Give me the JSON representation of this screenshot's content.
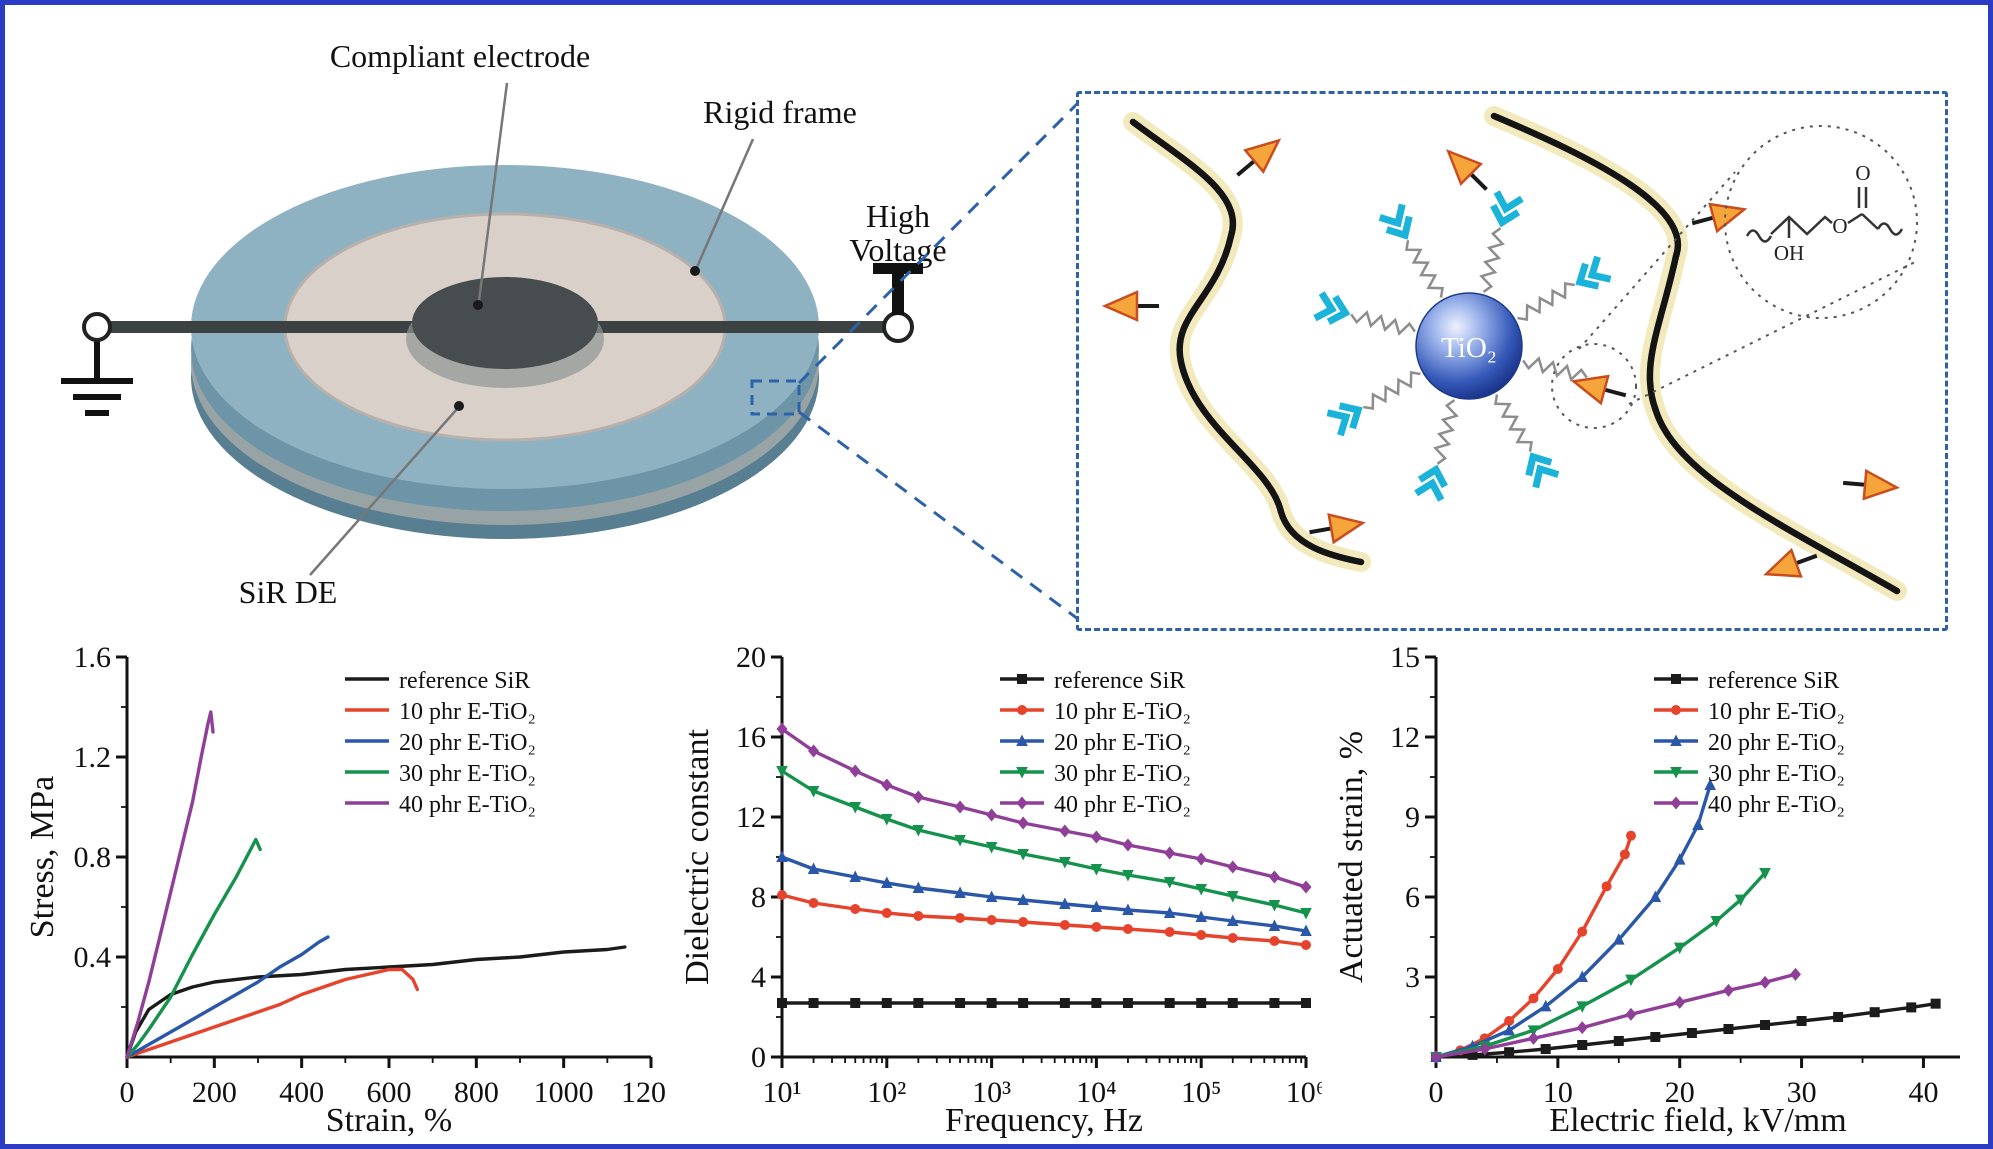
{
  "colors": {
    "figure_border": "#2b3cc4",
    "inset_dashed": "#2e62a8",
    "tio2_sphere": "#2a50b0",
    "cyan_arrow": "#1cb3da",
    "orange_arrow": "#f6a53a",
    "reference_black": "#1b1b1b",
    "phr10_red": "#e5432c",
    "phr20_blue": "#2a57a8",
    "phr30_green": "#15924c",
    "phr40_purple": "#8f3f97"
  },
  "diagram": {
    "labels": {
      "compliant_electrode": "Compliant electrode",
      "rigid_frame": "Rigid frame",
      "high_voltage_line1": "High",
      "high_voltage_line2": "Voltage",
      "sir_de": "SiR DE"
    }
  },
  "inset": {
    "tio2_label": "TiO₂",
    "chem": {
      "oh": "OH",
      "o_ester": "O",
      "o_carbonyl": "O"
    }
  },
  "chart_data": [
    {
      "type": "line",
      "name": "stress-strain",
      "title": "",
      "xlabel": "Strain, %",
      "ylabel": "Stress, MPa",
      "xlim": [
        0,
        1200
      ],
      "ylim": [
        0,
        1.6
      ],
      "xticks": [
        0,
        200,
        400,
        600,
        800,
        1000,
        1200
      ],
      "yticks": [
        0.4,
        0.8,
        1.2,
        1.6
      ],
      "grid": false,
      "legend_position": "top-right",
      "markers": false,
      "series": [
        {
          "name": "reference SiR",
          "color": "#1b1b1b",
          "marker": "square",
          "points": [
            [
              0,
              0
            ],
            [
              20,
              0.1
            ],
            [
              50,
              0.19
            ],
            [
              100,
              0.25
            ],
            [
              150,
              0.28
            ],
            [
              200,
              0.3
            ],
            [
              300,
              0.32
            ],
            [
              400,
              0.33
            ],
            [
              500,
              0.35
            ],
            [
              600,
              0.36
            ],
            [
              700,
              0.37
            ],
            [
              800,
              0.39
            ],
            [
              900,
              0.4
            ],
            [
              1000,
              0.42
            ],
            [
              1100,
              0.43
            ],
            [
              1140,
              0.44
            ]
          ]
        },
        {
          "name": "10 phr E-TiO₂",
          "color": "#e5432c",
          "marker": "circle",
          "points": [
            [
              0,
              0
            ],
            [
              50,
              0.03
            ],
            [
              100,
              0.06
            ],
            [
              150,
              0.09
            ],
            [
              200,
              0.12
            ],
            [
              250,
              0.15
            ],
            [
              300,
              0.18
            ],
            [
              350,
              0.21
            ],
            [
              400,
              0.25
            ],
            [
              450,
              0.28
            ],
            [
              500,
              0.31
            ],
            [
              550,
              0.33
            ],
            [
              600,
              0.35
            ],
            [
              630,
              0.35
            ],
            [
              655,
              0.31
            ],
            [
              665,
              0.27
            ]
          ]
        },
        {
          "name": "20 phr E-TiO₂",
          "color": "#2a57a8",
          "marker": "triangle-up",
          "points": [
            [
              0,
              0
            ],
            [
              50,
              0.05
            ],
            [
              100,
              0.1
            ],
            [
              150,
              0.15
            ],
            [
              200,
              0.2
            ],
            [
              250,
              0.25
            ],
            [
              300,
              0.3
            ],
            [
              350,
              0.36
            ],
            [
              400,
              0.41
            ],
            [
              440,
              0.46
            ],
            [
              460,
              0.48
            ]
          ]
        },
        {
          "name": "30 phr E-TiO₂",
          "color": "#15924c",
          "marker": "triangle-down",
          "points": [
            [
              0,
              0
            ],
            [
              25,
              0.05
            ],
            [
              50,
              0.11
            ],
            [
              100,
              0.24
            ],
            [
              150,
              0.41
            ],
            [
              200,
              0.57
            ],
            [
              250,
              0.72
            ],
            [
              280,
              0.82
            ],
            [
              295,
              0.87
            ],
            [
              305,
              0.83
            ]
          ]
        },
        {
          "name": "40 phr E-TiO₂",
          "color": "#8f3f97",
          "marker": "diamond",
          "points": [
            [
              0,
              0
            ],
            [
              25,
              0.14
            ],
            [
              50,
              0.3
            ],
            [
              75,
              0.48
            ],
            [
              100,
              0.66
            ],
            [
              125,
              0.84
            ],
            [
              150,
              1.02
            ],
            [
              170,
              1.2
            ],
            [
              185,
              1.33
            ],
            [
              192,
              1.38
            ],
            [
              197,
              1.3
            ]
          ]
        }
      ]
    },
    {
      "type": "line",
      "name": "dielectric-constant",
      "title": "",
      "xlabel": "Frequency, Hz",
      "ylabel": "Dielectric constant",
      "xscale": "log",
      "xlim": [
        10,
        1000000
      ],
      "ylim": [
        0,
        20
      ],
      "xticks": [
        10,
        100,
        1000,
        10000,
        100000,
        1000000
      ],
      "xtick_labels": [
        "10¹",
        "10²",
        "10³",
        "10⁴",
        "10⁵",
        "10⁶"
      ],
      "yticks": [
        0,
        4,
        8,
        12,
        16,
        20
      ],
      "grid": false,
      "legend_position": "top-right",
      "markers": true,
      "series": [
        {
          "name": "reference SiR",
          "color": "#1b1b1b",
          "marker": "square",
          "points": [
            [
              10,
              2.7
            ],
            [
              20,
              2.7
            ],
            [
              50,
              2.7
            ],
            [
              100,
              2.7
            ],
            [
              200,
              2.7
            ],
            [
              500,
              2.7
            ],
            [
              1000,
              2.7
            ],
            [
              2000,
              2.7
            ],
            [
              5000,
              2.7
            ],
            [
              10000,
              2.7
            ],
            [
              20000,
              2.7
            ],
            [
              50000,
              2.7
            ],
            [
              100000,
              2.7
            ],
            [
              200000,
              2.7
            ],
            [
              500000,
              2.7
            ],
            [
              1000000,
              2.7
            ]
          ]
        },
        {
          "name": "10 phr E-TiO₂",
          "color": "#e5432c",
          "marker": "circle",
          "points": [
            [
              10,
              8.1
            ],
            [
              20,
              7.7
            ],
            [
              50,
              7.4
            ],
            [
              100,
              7.2
            ],
            [
              200,
              7.05
            ],
            [
              500,
              6.95
            ],
            [
              1000,
              6.85
            ],
            [
              2000,
              6.75
            ],
            [
              5000,
              6.6
            ],
            [
              10000,
              6.5
            ],
            [
              20000,
              6.4
            ],
            [
              50000,
              6.25
            ],
            [
              100000,
              6.1
            ],
            [
              200000,
              5.95
            ],
            [
              500000,
              5.8
            ],
            [
              1000000,
              5.6
            ]
          ]
        },
        {
          "name": "20 phr E-TiO₂",
          "color": "#2a57a8",
          "marker": "triangle-up",
          "points": [
            [
              10,
              10
            ],
            [
              20,
              9.4
            ],
            [
              50,
              9
            ],
            [
              100,
              8.7
            ],
            [
              200,
              8.45
            ],
            [
              500,
              8.2
            ],
            [
              1000,
              8
            ],
            [
              2000,
              7.85
            ],
            [
              5000,
              7.65
            ],
            [
              10000,
              7.5
            ],
            [
              20000,
              7.35
            ],
            [
              50000,
              7.2
            ],
            [
              100000,
              7
            ],
            [
              200000,
              6.8
            ],
            [
              500000,
              6.55
            ],
            [
              1000000,
              6.3
            ]
          ]
        },
        {
          "name": "30 phr E-TiO₂",
          "color": "#15924c",
          "marker": "triangle-down",
          "points": [
            [
              10,
              14.3
            ],
            [
              20,
              13.3
            ],
            [
              50,
              12.5
            ],
            [
              100,
              11.9
            ],
            [
              200,
              11.35
            ],
            [
              500,
              10.85
            ],
            [
              1000,
              10.5
            ],
            [
              2000,
              10.15
            ],
            [
              5000,
              9.75
            ],
            [
              10000,
              9.4
            ],
            [
              20000,
              9.1
            ],
            [
              50000,
              8.75
            ],
            [
              100000,
              8.4
            ],
            [
              200000,
              8.05
            ],
            [
              500000,
              7.6
            ],
            [
              1000000,
              7.2
            ]
          ]
        },
        {
          "name": "40 phr E-TiO₂",
          "color": "#8f3f97",
          "marker": "diamond",
          "points": [
            [
              10,
              16.4
            ],
            [
              20,
              15.3
            ],
            [
              50,
              14.3
            ],
            [
              100,
              13.6
            ],
            [
              200,
              13
            ],
            [
              500,
              12.5
            ],
            [
              1000,
              12.1
            ],
            [
              2000,
              11.7
            ],
            [
              5000,
              11.3
            ],
            [
              10000,
              11
            ],
            [
              20000,
              10.6
            ],
            [
              50000,
              10.2
            ],
            [
              100000,
              9.9
            ],
            [
              200000,
              9.5
            ],
            [
              500000,
              9
            ],
            [
              1000000,
              8.5
            ]
          ]
        }
      ]
    },
    {
      "type": "line",
      "name": "actuated-strain",
      "title": "",
      "xlabel": "Electric field, kV/mm",
      "ylabel": "Actuated strain, %",
      "xlim": [
        0,
        43
      ],
      "ylim": [
        0,
        15
      ],
      "xticks": [
        0,
        10,
        20,
        30,
        40
      ],
      "yticks": [
        3,
        6,
        9,
        12,
        15
      ],
      "grid": false,
      "legend_position": "top-right",
      "markers": true,
      "series": [
        {
          "name": "reference SiR",
          "color": "#1b1b1b",
          "marker": "square",
          "points": [
            [
              0,
              0
            ],
            [
              3,
              0.08
            ],
            [
              6,
              0.18
            ],
            [
              9,
              0.3
            ],
            [
              12,
              0.45
            ],
            [
              15,
              0.6
            ],
            [
              18,
              0.75
            ],
            [
              21,
              0.9
            ],
            [
              24,
              1.05
            ],
            [
              27,
              1.2
            ],
            [
              30,
              1.35
            ],
            [
              33,
              1.5
            ],
            [
              36,
              1.68
            ],
            [
              39,
              1.86
            ],
            [
              41,
              2
            ]
          ]
        },
        {
          "name": "10 phr E-TiO₂",
          "color": "#e5432c",
          "marker": "circle",
          "points": [
            [
              0,
              0
            ],
            [
              2,
              0.25
            ],
            [
              4,
              0.7
            ],
            [
              6,
              1.35
            ],
            [
              8,
              2.2
            ],
            [
              10,
              3.3
            ],
            [
              12,
              4.7
            ],
            [
              14,
              6.4
            ],
            [
              15.5,
              7.6
            ],
            [
              16,
              8.3
            ]
          ]
        },
        {
          "name": "20 phr E-TiO₂",
          "color": "#2a57a8",
          "marker": "triangle-up",
          "points": [
            [
              0,
              0
            ],
            [
              3,
              0.4
            ],
            [
              6,
              1
            ],
            [
              9,
              1.9
            ],
            [
              12,
              3
            ],
            [
              15,
              4.4
            ],
            [
              18,
              6
            ],
            [
              20,
              7.4
            ],
            [
              21.5,
              8.7
            ],
            [
              22.5,
              10.2
            ]
          ]
        },
        {
          "name": "30 phr E-TiO₂",
          "color": "#15924c",
          "marker": "triangle-down",
          "points": [
            [
              0,
              0
            ],
            [
              4,
              0.4
            ],
            [
              8,
              1
            ],
            [
              12,
              1.9
            ],
            [
              16,
              2.9
            ],
            [
              20,
              4.1
            ],
            [
              23,
              5.1
            ],
            [
              25,
              5.9
            ],
            [
              27,
              6.9
            ]
          ]
        },
        {
          "name": "40 phr E-TiO₂",
          "color": "#8f3f97",
          "marker": "diamond",
          "points": [
            [
              0,
              0
            ],
            [
              4,
              0.3
            ],
            [
              8,
              0.7
            ],
            [
              12,
              1.1
            ],
            [
              16,
              1.6
            ],
            [
              20,
              2.05
            ],
            [
              24,
              2.5
            ],
            [
              27,
              2.8
            ],
            [
              29.5,
              3.1
            ]
          ]
        }
      ]
    }
  ]
}
